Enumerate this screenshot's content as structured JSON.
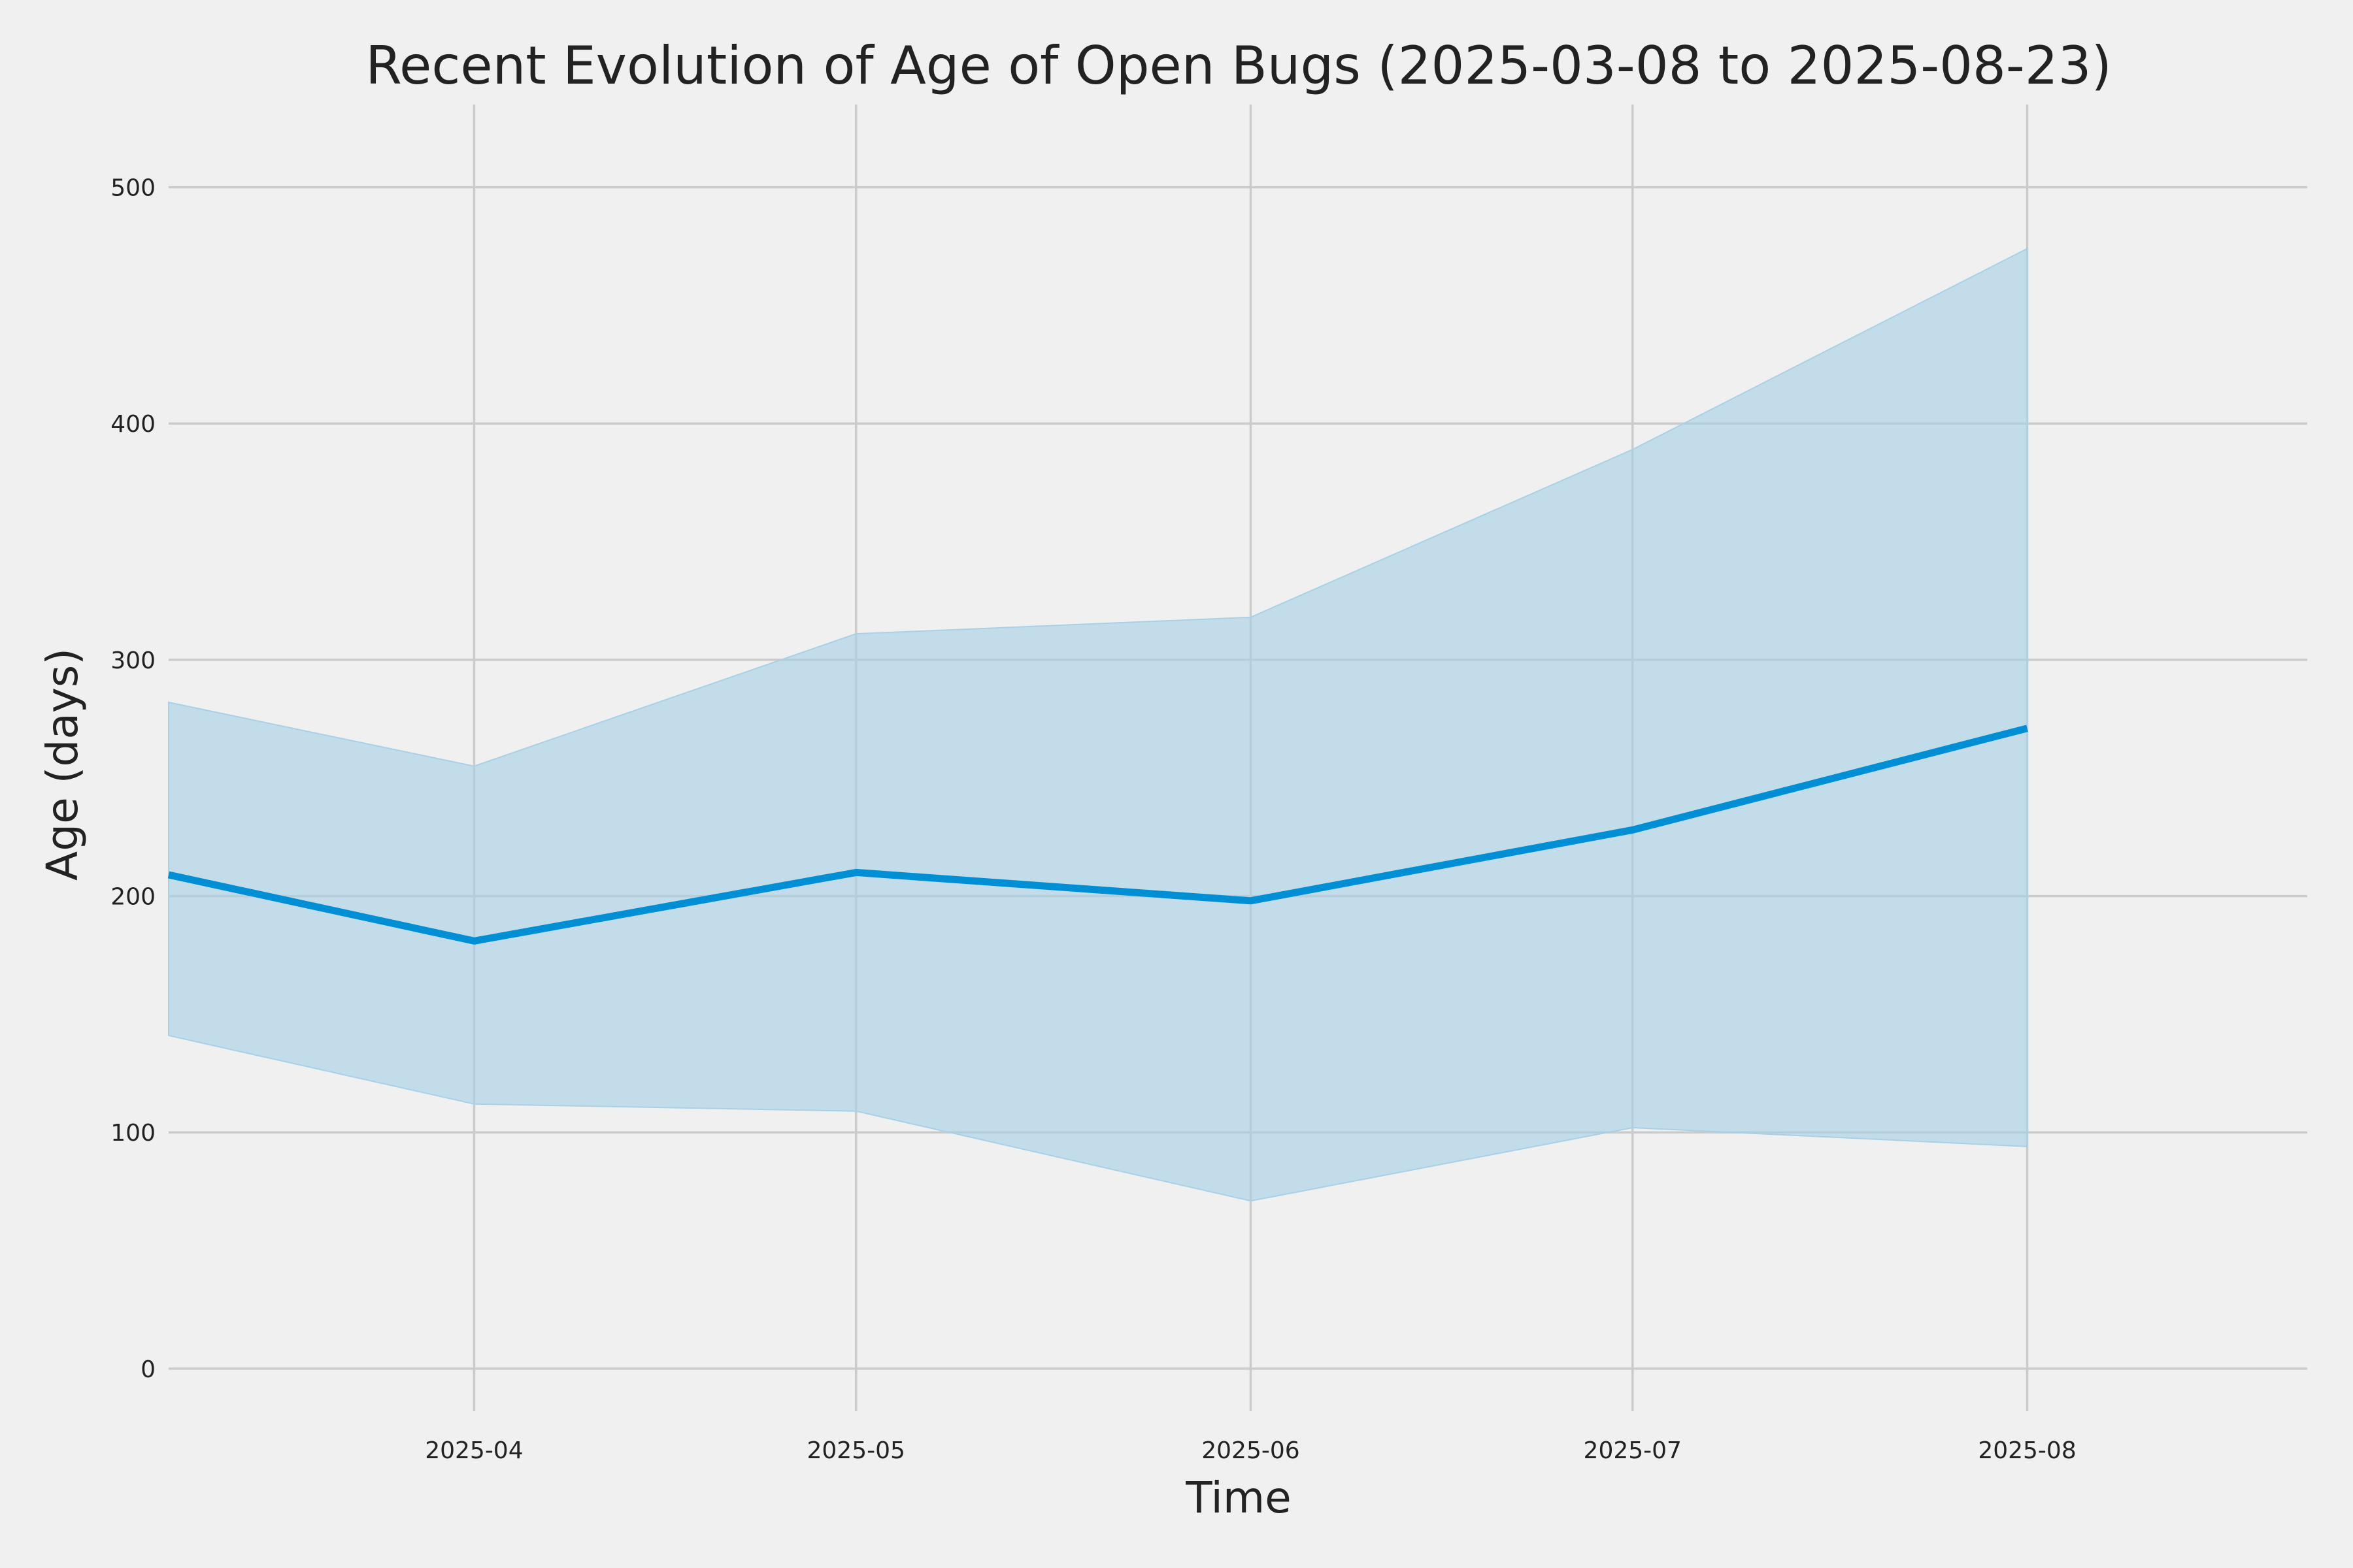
{
  "chart_data": {
    "type": "area",
    "title": "Recent Evolution of Age of Open Bugs (2025-03-08 to 2025-08-23)",
    "xlabel": "Time",
    "ylabel": "Age (days)",
    "x": [
      "2025-03-08",
      "2025-04-01",
      "2025-05-01",
      "2025-06-01",
      "2025-07-01",
      "2025-08-01"
    ],
    "series": [
      {
        "values": [
          209,
          181,
          210,
          198,
          228,
          271
        ],
        "lower": [
          141,
          112,
          109,
          71,
          102,
          94
        ],
        "upper": [
          282,
          255,
          311,
          318,
          389,
          474
        ],
        "color": "#008fd5",
        "band_color": "#a8d1e7"
      }
    ],
    "x_ticks": [
      "2025-04",
      "2025-05",
      "2025-06",
      "2025-07",
      "2025-08"
    ],
    "x_tick_dates": [
      "2025-04-01",
      "2025-05-01",
      "2025-06-01",
      "2025-07-01",
      "2025-08-01"
    ],
    "xlim": [
      "2025-03-08",
      "2025-08-23"
    ],
    "y_ticks": [
      0,
      100,
      200,
      300,
      400,
      500
    ],
    "ylim": [
      -18,
      535
    ],
    "grid": true,
    "background_color": "#f0f0f0"
  }
}
